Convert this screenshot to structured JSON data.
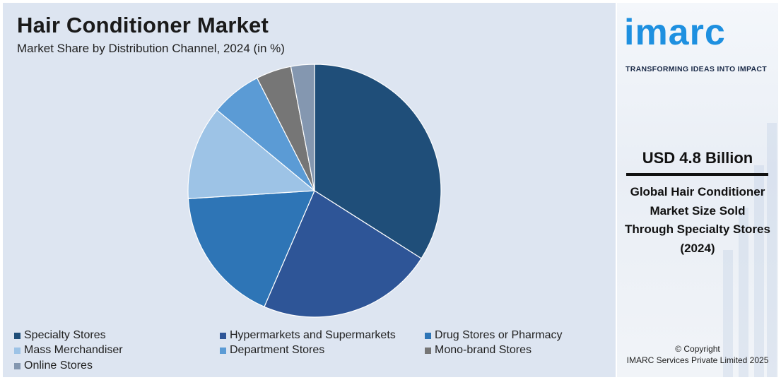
{
  "header": {
    "title": "Hair Conditioner Market",
    "subtitle": "Market Share by Distribution Channel, 2024 (in %)"
  },
  "chart_data": {
    "type": "pie",
    "title": "Hair Conditioner Market",
    "subtitle": "Market Share by Distribution Channel, 2024 (in %)",
    "categories": [
      "Specialty Stores",
      "Hypermarkets and Supermarkets",
      "Drug Stores or Pharmacy",
      "Mass Merchandiser",
      "Department Stores",
      "Mono-brand Stores",
      "Online Stores"
    ],
    "values": [
      34,
      22.5,
      17.5,
      12,
      6.5,
      4.5,
      3
    ],
    "colors": [
      "#1f4e79",
      "#2e5597",
      "#2e75b6",
      "#9dc3e6",
      "#5b9bd5",
      "#767676",
      "#8497b0"
    ],
    "legend_position": "bottom",
    "start_angle_deg": 0,
    "direction": "clockwise"
  },
  "legend": {
    "items": [
      {
        "label": "Specialty Stores",
        "color": "#1f4e79"
      },
      {
        "label": "Hypermarkets and Supermarkets",
        "color": "#2e5597"
      },
      {
        "label": "Drug Stores or Pharmacy",
        "color": "#2e75b6"
      },
      {
        "label": "Mass Merchandiser",
        "color": "#9dc3e6"
      },
      {
        "label": "Department Stores",
        "color": "#5b9bd5"
      },
      {
        "label": "Mono-brand Stores",
        "color": "#767676"
      },
      {
        "label": "Online Stores",
        "color": "#8497b0"
      }
    ]
  },
  "sidebar": {
    "logo_text": "imarc",
    "tagline": "TRANSFORMING IDEAS INTO IMPACT",
    "market_value": "USD 4.8 Billion",
    "value_description": "Global Hair Conditioner Market Size Sold Through Specialty Stores (2024)",
    "copyright_line1": "© Copyright",
    "copyright_line2": "IMARC Services Private Limited 2025",
    "brand_color": "#1e90e0"
  }
}
